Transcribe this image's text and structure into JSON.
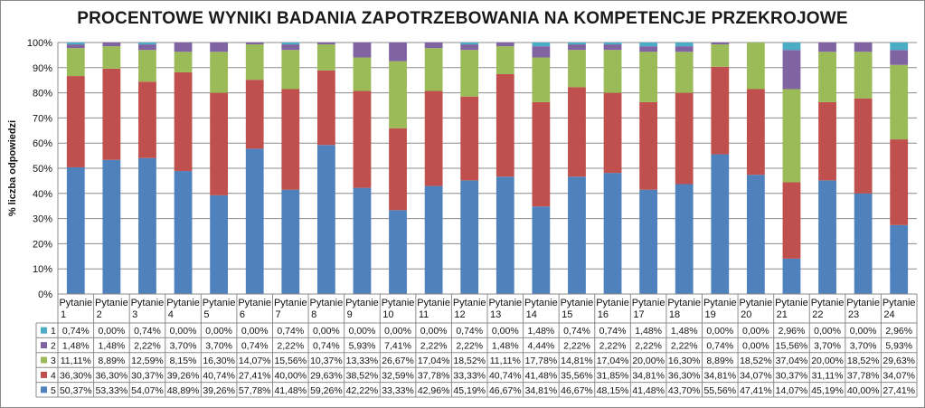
{
  "chart_data": {
    "type": "bar",
    "stacked": true,
    "title": "PROCENTOWE WYNIKI BADANIA ZAPOTRZEBOWANIA NA KOMPETENCJE PRZEKROJOWE",
    "ylabel": "% liczba odpowiedzi",
    "xlabel": "",
    "ylim": [
      0,
      100
    ],
    "yticks": [
      "0%",
      "10%",
      "20%",
      "30%",
      "40%",
      "50%",
      "60%",
      "70%",
      "80%",
      "90%",
      "100%"
    ],
    "grid": true,
    "legend": "data-table",
    "categories": [
      "Pytanie 1",
      "Pytanie 2",
      "Pytanie 3",
      "Pytanie 4",
      "Pytanie 5",
      "Pytanie 6",
      "Pytanie 7",
      "Pytanie 8",
      "Pytanie 9",
      "Pytanie 10",
      "Pytanie 11",
      "Pytanie 12",
      "Pytanie 13",
      "Pytanie 14",
      "Pytanie 15",
      "Pytanie 16",
      "Pytanie 17",
      "Pytanie 18",
      "Pytanie 19",
      "Pytanie 20",
      "Pytanie 21",
      "Pytanie 22",
      "Pytanie 23",
      "Pytanie 24"
    ],
    "series": [
      {
        "name": "5",
        "color": "#4f81bd",
        "values": [
          "50,37%",
          "53,33%",
          "54,07%",
          "48,89%",
          "39,26%",
          "57,78%",
          "41,48%",
          "59,26%",
          "42,22%",
          "33,33%",
          "42,96%",
          "45,19%",
          "46,67%",
          "34,81%",
          "46,67%",
          "48,15%",
          "41,48%",
          "43,70%",
          "55,56%",
          "47,41%",
          "14,07%",
          "45,19%",
          "40,00%",
          "27,41%"
        ]
      },
      {
        "name": "4",
        "color": "#c0504d",
        "values": [
          "36,30%",
          "36,30%",
          "30,37%",
          "39,26%",
          "40,74%",
          "27,41%",
          "40,00%",
          "29,63%",
          "38,52%",
          "32,59%",
          "37,78%",
          "33,33%",
          "40,74%",
          "41,48%",
          "35,56%",
          "31,85%",
          "34,81%",
          "36,30%",
          "34,81%",
          "34,07%",
          "30,37%",
          "31,11%",
          "37,78%",
          "34,07%"
        ]
      },
      {
        "name": "3",
        "color": "#9bbb59",
        "values": [
          "11,11%",
          "8,89%",
          "12,59%",
          "8,15%",
          "16,30%",
          "14,07%",
          "15,56%",
          "10,37%",
          "13,33%",
          "26,67%",
          "17,04%",
          "18,52%",
          "11,11%",
          "17,78%",
          "14,81%",
          "17,04%",
          "20,00%",
          "16,30%",
          "8,89%",
          "18,52%",
          "37,04%",
          "20,00%",
          "18,52%",
          "29,63%"
        ]
      },
      {
        "name": "2",
        "color": "#8064a2",
        "values": [
          "1,48%",
          "1,48%",
          "2,22%",
          "3,70%",
          "3,70%",
          "0,74%",
          "2,22%",
          "0,74%",
          "5,93%",
          "7,41%",
          "2,22%",
          "2,22%",
          "1,48%",
          "4,44%",
          "2,22%",
          "2,22%",
          "2,22%",
          "2,22%",
          "0,74%",
          "0,00%",
          "15,56%",
          "3,70%",
          "3,70%",
          "5,93%"
        ]
      },
      {
        "name": "1",
        "color": "#4bacc6",
        "values": [
          "0,74%",
          "0,00%",
          "0,74%",
          "0,00%",
          "0,00%",
          "0,00%",
          "0,74%",
          "0,00%",
          "0,00%",
          "0,00%",
          "0,00%",
          "0,74%",
          "0,00%",
          "1,48%",
          "0,74%",
          "0,74%",
          "1,48%",
          "1,48%",
          "0,00%",
          "0,00%",
          "2,96%",
          "0,00%",
          "0,00%",
          "2,96%"
        ]
      }
    ],
    "table_row_order": [
      "1",
      "2",
      "3",
      "4",
      "5"
    ]
  }
}
